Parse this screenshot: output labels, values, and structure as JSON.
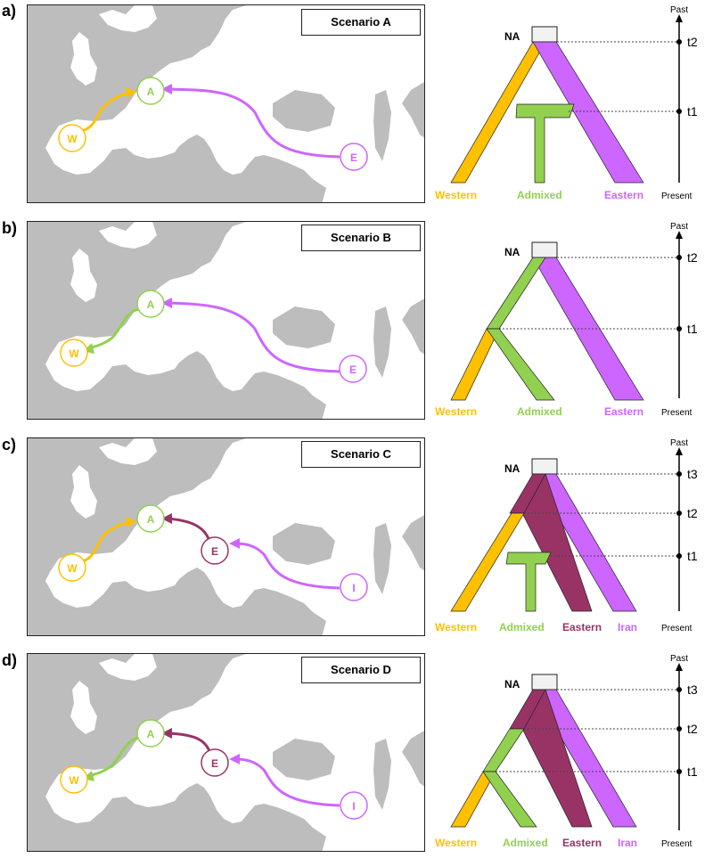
{
  "panels": [
    {
      "label": "a)",
      "scenario": "Scenario A",
      "na": "NA",
      "axis_top": "Past",
      "axis_bottom": "Present",
      "times": [
        "t2",
        "t1"
      ],
      "map_nodes": [
        "W",
        "A",
        "E"
      ],
      "pops": [
        "Western",
        "Admixed",
        "Eastern"
      ]
    },
    {
      "label": "b)",
      "scenario": "Scenario B",
      "na": "NA",
      "axis_top": "Past",
      "axis_bottom": "Present",
      "times": [
        "t2",
        "t1"
      ],
      "map_nodes": [
        "W",
        "A",
        "E"
      ],
      "pops": [
        "Western",
        "Admixed",
        "Eastern"
      ]
    },
    {
      "label": "c)",
      "scenario": "Scenario C",
      "na": "NA",
      "axis_top": "Past",
      "axis_bottom": "Present",
      "times": [
        "t3",
        "t2",
        "t1"
      ],
      "map_nodes": [
        "W",
        "A",
        "E",
        "I"
      ],
      "pops": [
        "Western",
        "Admixed",
        "Eastern",
        "Iran"
      ]
    },
    {
      "label": "d)",
      "scenario": "Scenario D",
      "na": "NA",
      "axis_top": "Past",
      "axis_bottom": "Present",
      "times": [
        "t3",
        "t2",
        "t1"
      ],
      "map_nodes": [
        "W",
        "A",
        "E",
        "I"
      ],
      "pops": [
        "Western",
        "Admixed",
        "Eastern",
        "Iran"
      ]
    }
  ],
  "colors": {
    "western": "#ffc000",
    "admixed": "#92d050",
    "eastern_ab": "#cc66ff",
    "eastern_cd": "#993366",
    "iran": "#cc66ff",
    "map_bg": "#bdbdbd",
    "land": "#ffffff",
    "na_box": "#f2f2f2"
  }
}
